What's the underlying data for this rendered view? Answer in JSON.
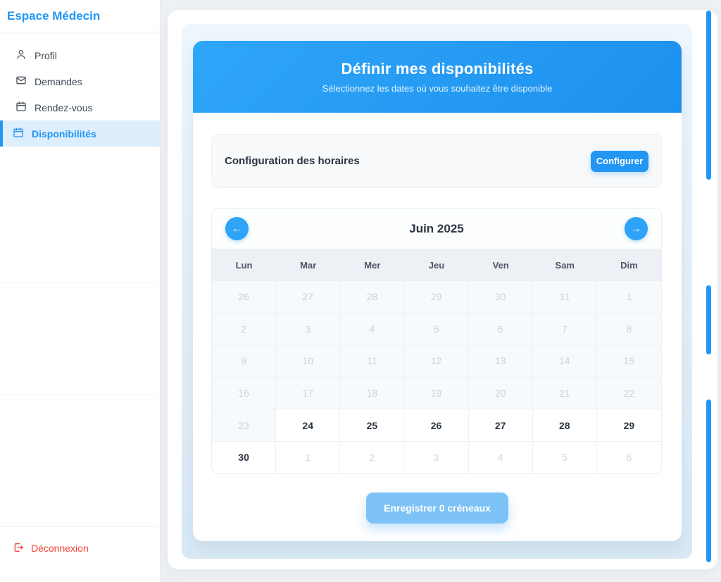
{
  "sidebar": {
    "brand": "Espace Médecin",
    "items": [
      {
        "label": "Profil",
        "icon": "user-icon",
        "active": false
      },
      {
        "label": "Demandes",
        "icon": "mail-icon",
        "active": false
      },
      {
        "label": "Rendez-vous",
        "icon": "calendar-icon",
        "active": false
      },
      {
        "label": "Disponibilités",
        "icon": "calendar-icon",
        "active": true
      }
    ],
    "logout_label": "Déconnexion"
  },
  "header": {
    "title": "Définir mes disponibilités",
    "subtitle": "Sélectionnez les dates où vous souhaitez être disponible"
  },
  "config": {
    "label": "Configuration des horaires",
    "button_label": "Configurer"
  },
  "calendar": {
    "month_title": "Juin 2025",
    "prev_icon": "←",
    "next_icon": "→",
    "weekdays": [
      "Lun",
      "Mar",
      "Mer",
      "Jeu",
      "Ven",
      "Sam",
      "Dim"
    ],
    "weeks": [
      [
        {
          "day": "26",
          "state": "past"
        },
        {
          "day": "27",
          "state": "past"
        },
        {
          "day": "28",
          "state": "past"
        },
        {
          "day": "29",
          "state": "past"
        },
        {
          "day": "30",
          "state": "past"
        },
        {
          "day": "31",
          "state": "past"
        },
        {
          "day": "1",
          "state": "past"
        }
      ],
      [
        {
          "day": "2",
          "state": "past"
        },
        {
          "day": "3",
          "state": "past"
        },
        {
          "day": "4",
          "state": "past"
        },
        {
          "day": "5",
          "state": "past"
        },
        {
          "day": "6",
          "state": "past"
        },
        {
          "day": "7",
          "state": "past"
        },
        {
          "day": "8",
          "state": "past"
        }
      ],
      [
        {
          "day": "9",
          "state": "past"
        },
        {
          "day": "10",
          "state": "past"
        },
        {
          "day": "11",
          "state": "past"
        },
        {
          "day": "12",
          "state": "past"
        },
        {
          "day": "13",
          "state": "past"
        },
        {
          "day": "14",
          "state": "past"
        },
        {
          "day": "15",
          "state": "past"
        }
      ],
      [
        {
          "day": "16",
          "state": "past"
        },
        {
          "day": "17",
          "state": "past"
        },
        {
          "day": "18",
          "state": "past"
        },
        {
          "day": "19",
          "state": "past"
        },
        {
          "day": "20",
          "state": "past"
        },
        {
          "day": "21",
          "state": "past"
        },
        {
          "day": "22",
          "state": "past"
        }
      ],
      [
        {
          "day": "23",
          "state": "past"
        },
        {
          "day": "24",
          "state": "available"
        },
        {
          "day": "25",
          "state": "available"
        },
        {
          "day": "26",
          "state": "available"
        },
        {
          "day": "27",
          "state": "available"
        },
        {
          "day": "28",
          "state": "available"
        },
        {
          "day": "29",
          "state": "available"
        }
      ],
      [
        {
          "day": "30",
          "state": "available"
        },
        {
          "day": "1",
          "state": "next-month"
        },
        {
          "day": "2",
          "state": "next-month"
        },
        {
          "day": "3",
          "state": "next-month"
        },
        {
          "day": "4",
          "state": "next-month"
        },
        {
          "day": "5",
          "state": "next-month"
        },
        {
          "day": "6",
          "state": "next-month"
        }
      ]
    ]
  },
  "footer": {
    "save_label": "Enregistrer 0 créneaux"
  },
  "colors": {
    "primary_blue": "#2196f3",
    "save_button_blue": "#7cc2f6",
    "logout_red": "#f44336",
    "active_item_bg": "#ddeefc",
    "disabled_cell_bg": "#f7fafc",
    "disabled_text": "#c7d2dc"
  }
}
